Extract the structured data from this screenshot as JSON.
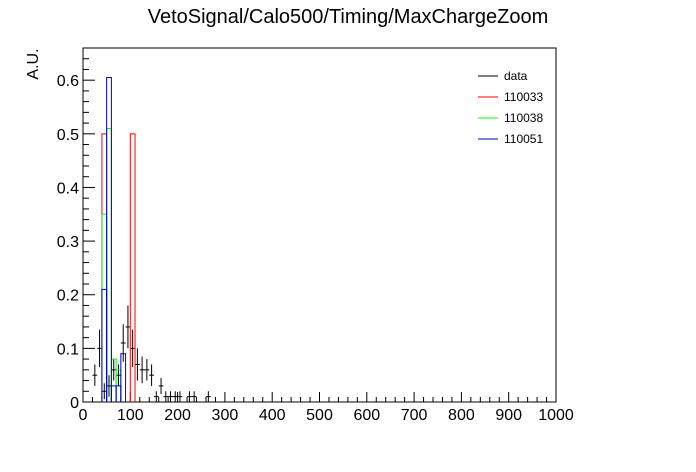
{
  "chart_data": {
    "type": "histogram",
    "title": "VetoSignal/Calo500/Timing/MaxChargeZoom",
    "xlabel": "",
    "ylabel": "A.U.",
    "xlim": [
      0,
      1000
    ],
    "ylim": [
      0,
      0.66
    ],
    "grid": false,
    "legend_position": "top-right",
    "xticks": [
      0,
      100,
      200,
      300,
      400,
      500,
      600,
      700,
      800,
      900,
      1000
    ],
    "xtick_labels": [
      "0",
      "100",
      "200",
      "300",
      "400",
      "500",
      "600",
      "700",
      "800",
      "900",
      "1000"
    ],
    "yticks": [
      0,
      0.1,
      0.2,
      0.3,
      0.4,
      0.5,
      0.6
    ],
    "ytick_labels": [
      "0",
      "0.1",
      "0.2",
      "0.3",
      "0.4",
      "0.5",
      "0.6"
    ],
    "bin_width": 10,
    "series": [
      {
        "name": "data",
        "style": "errorbar",
        "color": "#000000",
        "points": [
          {
            "x": 25,
            "y": 0.05,
            "err": 0.02
          },
          {
            "x": 35,
            "y": 0.1,
            "err": 0.035
          },
          {
            "x": 45,
            "y": 0.02,
            "err": 0.015
          },
          {
            "x": 55,
            "y": 0.03,
            "err": 0.02
          },
          {
            "x": 65,
            "y": 0.06,
            "err": 0.02
          },
          {
            "x": 75,
            "y": 0.05,
            "err": 0.02
          },
          {
            "x": 85,
            "y": 0.11,
            "err": 0.035
          },
          {
            "x": 95,
            "y": 0.14,
            "err": 0.04
          },
          {
            "x": 105,
            "y": 0.1,
            "err": 0.035
          },
          {
            "x": 115,
            "y": 0.07,
            "err": 0.03
          },
          {
            "x": 125,
            "y": 0.06,
            "err": 0.025
          },
          {
            "x": 135,
            "y": 0.06,
            "err": 0.02
          },
          {
            "x": 145,
            "y": 0.05,
            "err": 0.02
          },
          {
            "x": 155,
            "y": 0.01,
            "err": 0.01
          },
          {
            "x": 165,
            "y": 0.03,
            "err": 0.015
          },
          {
            "x": 175,
            "y": 0.01,
            "err": 0.01
          },
          {
            "x": 185,
            "y": 0.01,
            "err": 0.01
          },
          {
            "x": 195,
            "y": 0.01,
            "err": 0.01
          },
          {
            "x": 205,
            "y": 0.01,
            "err": 0.01
          },
          {
            "x": 225,
            "y": 0.01,
            "err": 0.01
          },
          {
            "x": 235,
            "y": 0.01,
            "err": 0.01
          },
          {
            "x": 265,
            "y": 0.01,
            "err": 0.01
          }
        ]
      },
      {
        "name": "110033",
        "style": "step",
        "color": "#ff0000",
        "bins": [
          {
            "x0": 40,
            "y": 0.5
          },
          {
            "x0": 100,
            "y": 0.5
          }
        ]
      },
      {
        "name": "110038",
        "style": "step",
        "color": "#00ff00",
        "bins": [
          {
            "x0": 40,
            "y": 0.35
          },
          {
            "x0": 50,
            "y": 0.51
          },
          {
            "x0": 60,
            "y": 0.08
          },
          {
            "x0": 70,
            "y": 0.06
          }
        ]
      },
      {
        "name": "110051",
        "style": "step",
        "color": "#0000cc",
        "bins": [
          {
            "x0": 40,
            "y": 0.21
          },
          {
            "x0": 50,
            "y": 0.605
          },
          {
            "x0": 60,
            "y": 0.03
          },
          {
            "x0": 70,
            "y": 0.03
          },
          {
            "x0": 80,
            "y": 0.09
          }
        ]
      }
    ]
  }
}
